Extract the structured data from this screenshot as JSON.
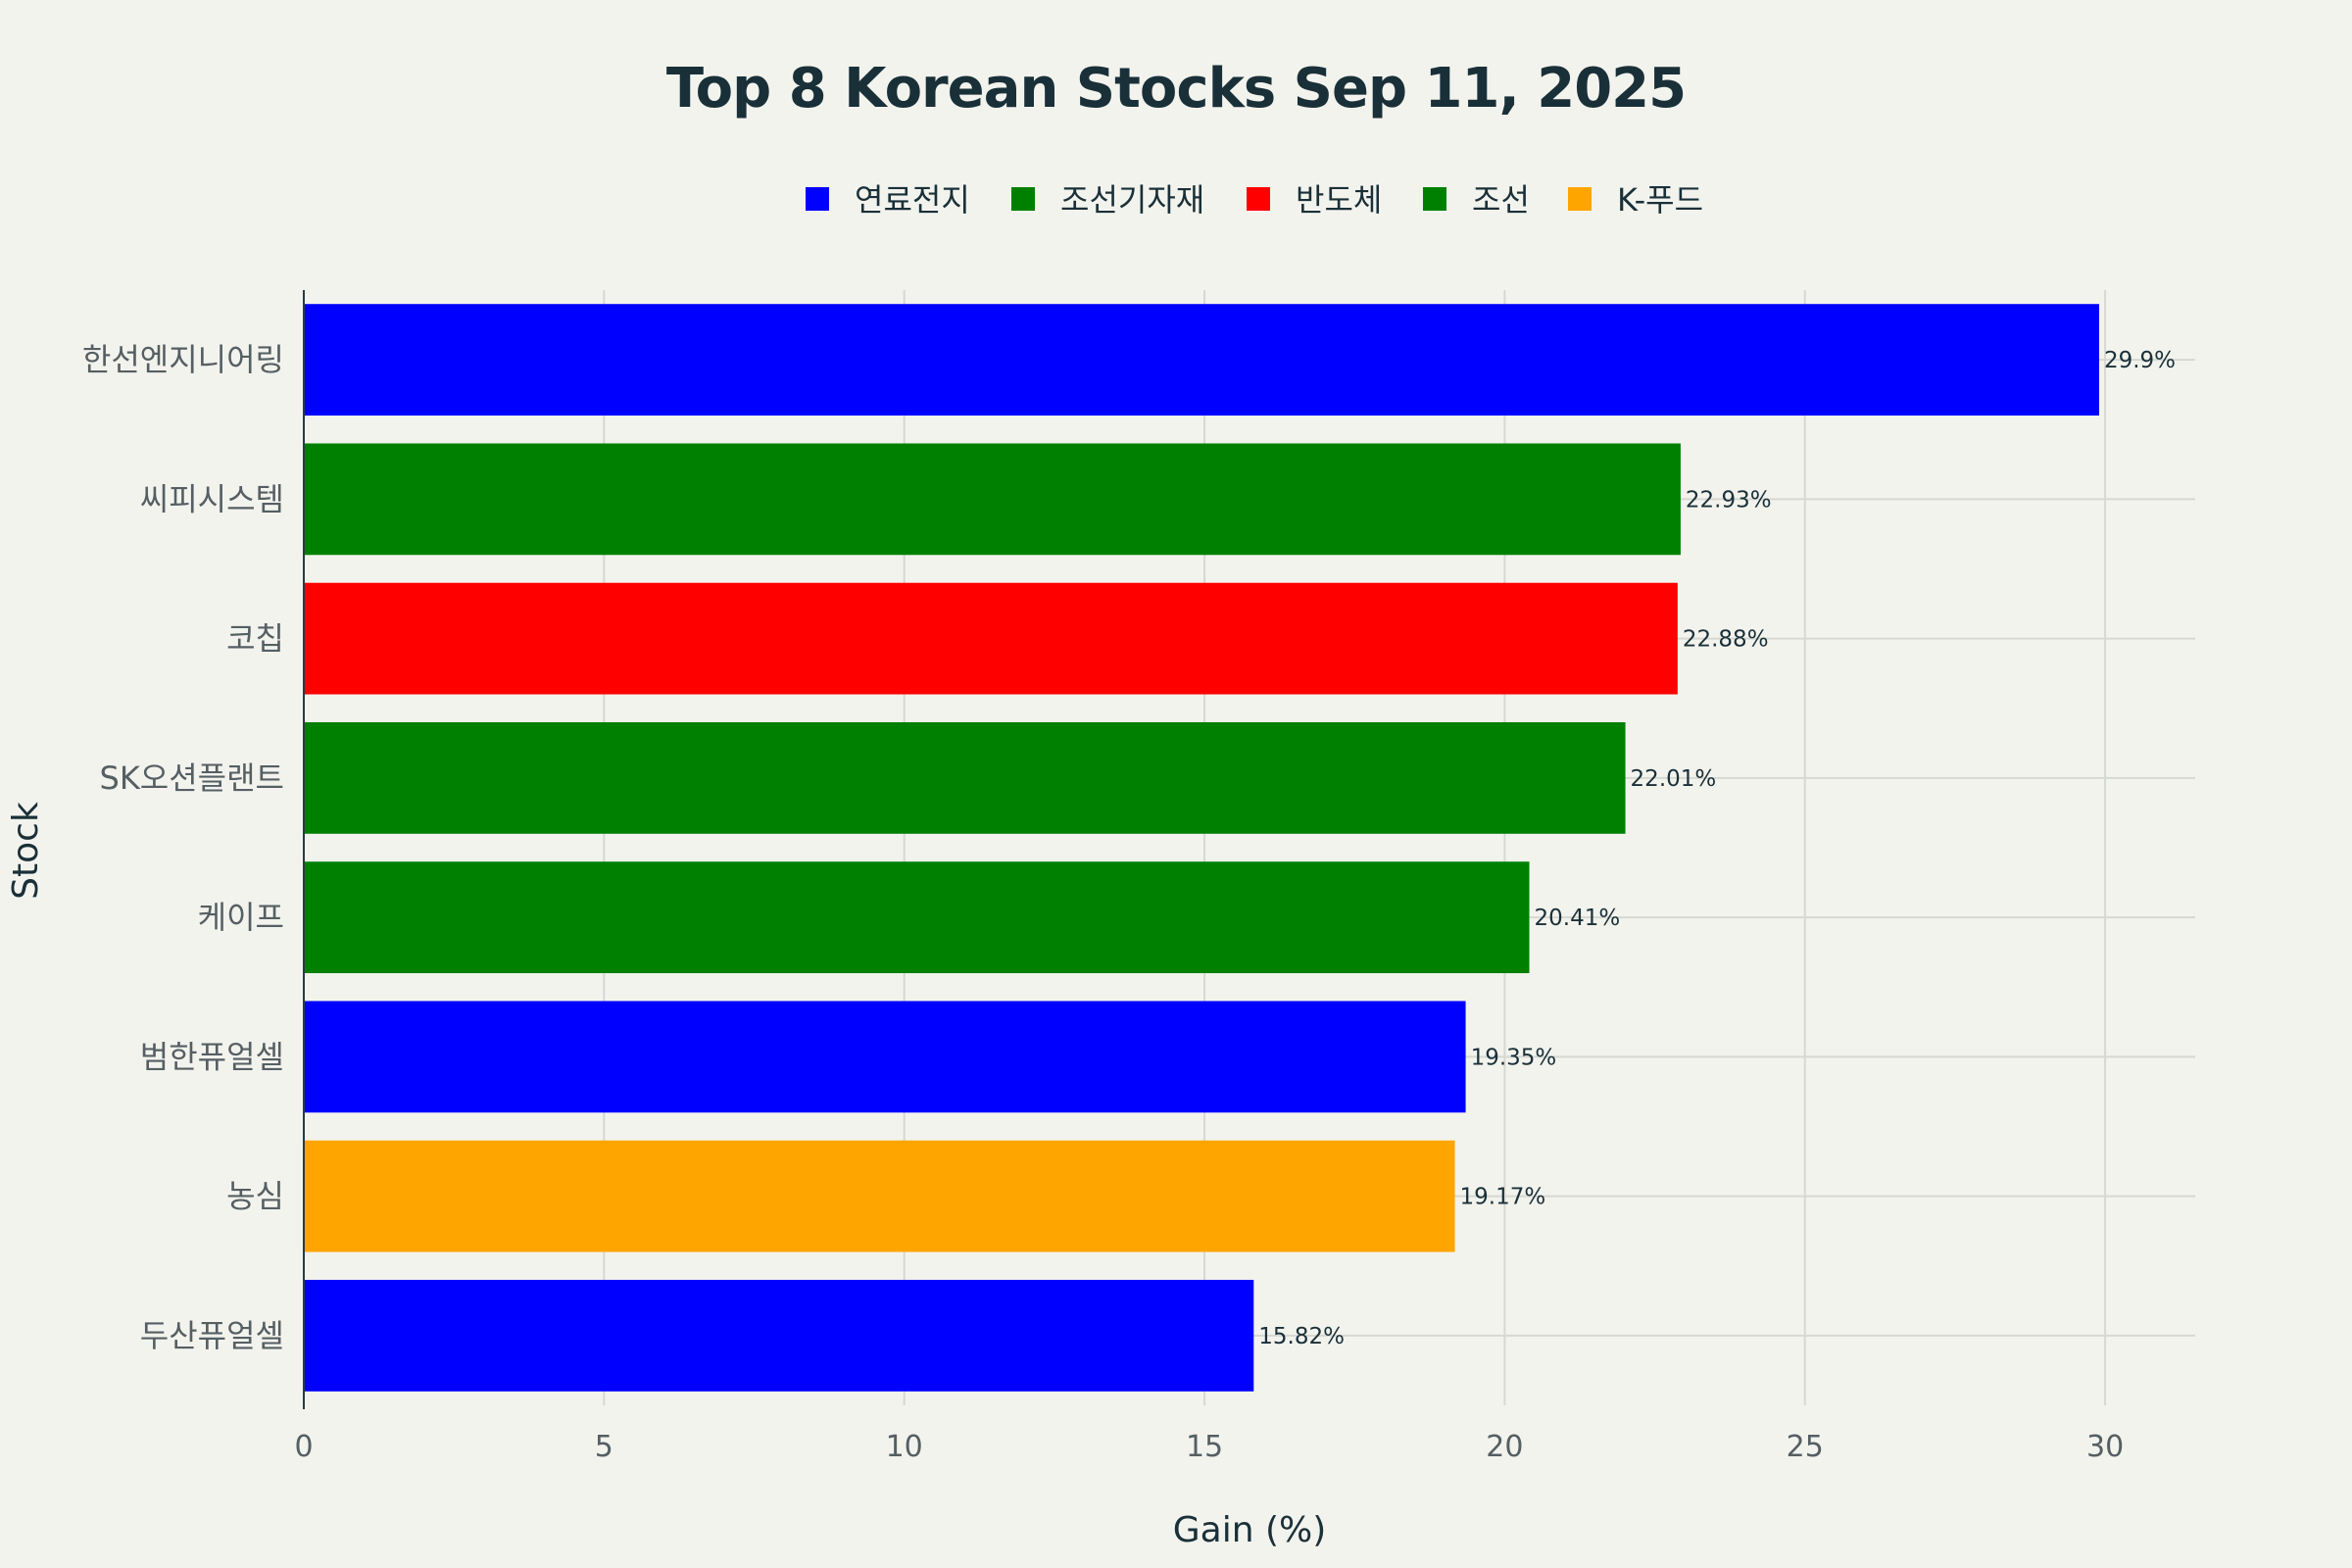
{
  "chart_data": {
    "type": "bar",
    "orientation": "horizontal",
    "title": "Top 8 Korean Stocks Sep 11, 2025",
    "xlabel": "Gain (%)",
    "ylabel": "Stock",
    "xlim": [
      0,
      31.5
    ],
    "xticks": [
      "0",
      "5",
      "10",
      "15",
      "20",
      "25",
      "30"
    ],
    "grid": true,
    "legend_position": "top-center",
    "legend": [
      {
        "name": "연료전지",
        "color": "#0000ff"
      },
      {
        "name": "조선기자재",
        "color": "#008000"
      },
      {
        "name": "반도체",
        "color": "#ff0000"
      },
      {
        "name": "조선",
        "color": "#008000"
      },
      {
        "name": "K-푸드",
        "color": "#ffa500"
      }
    ],
    "bars": [
      {
        "category": "한선엔지니어링",
        "value": 29.9,
        "label": "29.9%",
        "color": "#0000ff"
      },
      {
        "category": "씨피시스템",
        "value": 22.93,
        "label": "22.93%",
        "color": "#008000"
      },
      {
        "category": "코칩",
        "value": 22.88,
        "label": "22.88%",
        "color": "#ff0000"
      },
      {
        "category": "SK오션플랜트",
        "value": 22.01,
        "label": "22.01%",
        "color": "#008000"
      },
      {
        "category": "케이프",
        "value": 20.41,
        "label": "20.41%",
        "color": "#008000"
      },
      {
        "category": "범한퓨얼셀",
        "value": 19.35,
        "label": "19.35%",
        "color": "#0000ff"
      },
      {
        "category": "농심",
        "value": 19.17,
        "label": "19.17%",
        "color": "#ffa500"
      },
      {
        "category": "두산퓨얼셀",
        "value": 15.82,
        "label": "15.82%",
        "color": "#0000ff"
      }
    ]
  }
}
